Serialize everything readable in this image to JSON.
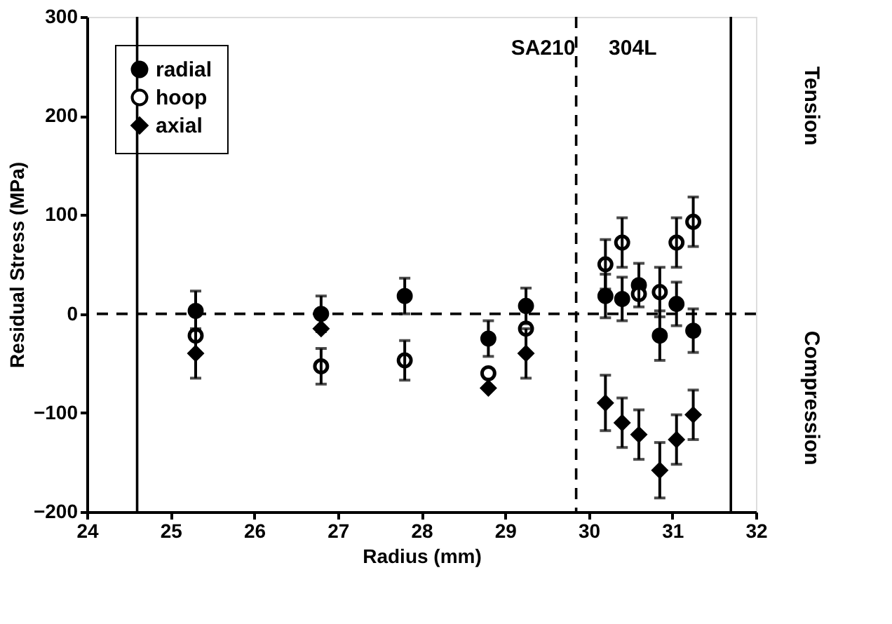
{
  "chart_data": {
    "type": "scatter",
    "xlabel": "Radius (mm)",
    "ylabel": "Residual Stress (MPa)",
    "x": [
      25.3,
      26.8,
      27.8,
      28.8,
      29.25,
      30.2,
      30.4,
      30.6,
      30.85,
      31.05,
      31.25
    ],
    "series": [
      {
        "name": "radial",
        "color": "#000000",
        "marker": "circle",
        "values": [
          3,
          0,
          18,
          -25,
          8,
          18,
          15,
          29,
          -22,
          10,
          -17
        ],
        "errors": [
          20,
          18,
          18,
          18,
          18,
          22,
          22,
          22,
          25,
          22,
          22
        ]
      },
      {
        "name": "hoop",
        "color": "#ffffff",
        "marker": "circle",
        "values": [
          -22,
          -53,
          -47,
          -60,
          -15,
          50,
          72,
          20,
          22,
          72,
          93
        ],
        "errors": [
          null,
          18,
          20,
          null,
          null,
          25,
          25,
          null,
          25,
          25,
          25
        ]
      },
      {
        "name": "axial",
        "color": "#000000",
        "marker": "diamond",
        "values": [
          -40,
          -15,
          null,
          -75,
          -40,
          -90,
          -110,
          -122,
          -158,
          -127,
          -102
        ],
        "errors": [
          25,
          null,
          null,
          null,
          25,
          28,
          25,
          25,
          28,
          25,
          25
        ]
      }
    ],
    "xlim": [
      24,
      32
    ],
    "xticks": [
      24,
      25,
      26,
      27,
      28,
      29,
      30,
      31,
      32
    ],
    "ylim": [
      -200,
      300
    ],
    "yticks": [
      -200,
      -100,
      0,
      100,
      200,
      300
    ],
    "ref_lines": [
      {
        "axis": "y",
        "value": 0,
        "line_style": "dashed"
      },
      {
        "axis": "x",
        "value": 24.6,
        "line_style": "solid"
      },
      {
        "axis": "x",
        "value": 29.85,
        "line_style": "dashed"
      },
      {
        "axis": "x",
        "value": 31.7,
        "line_style": "solid"
      }
    ],
    "annotations": [
      "SA210",
      "304L",
      "Tension",
      "Compression"
    ],
    "legend": "top left",
    "grid": false
  }
}
